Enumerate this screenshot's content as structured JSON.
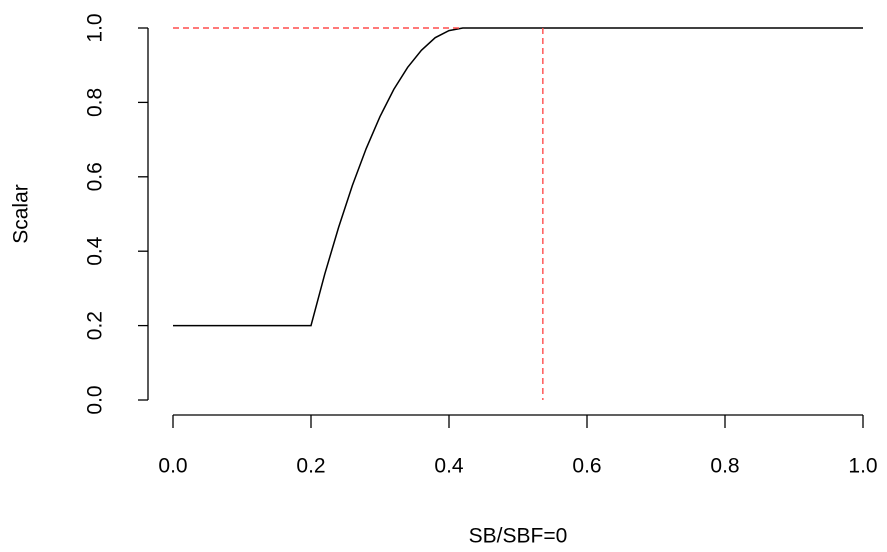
{
  "chart_data": {
    "type": "line",
    "x_label": "SB/SBF=0",
    "y_label": "Scalar",
    "series": [
      {
        "color": "#000000",
        "dashed": false,
        "x": [
          0,
          0.2,
          0.22,
          0.24,
          0.26,
          0.28,
          0.3,
          0.32,
          0.34,
          0.36,
          0.38,
          0.4,
          0.42,
          1.0
        ],
        "values": [
          0.2,
          0.2,
          0.339,
          0.464,
          0.577,
          0.676,
          0.762,
          0.835,
          0.894,
          0.94,
          0.974,
          0.993,
          1.0,
          1.0
        ]
      },
      {
        "color": "#ff4d4d",
        "dashed": true,
        "x": [
          0,
          0.42
        ],
        "values": [
          1.0,
          1.0
        ]
      },
      {
        "color": "#ff4d4d",
        "dashed": true,
        "x": [
          0.536,
          0.536
        ],
        "values": [
          1.0,
          0.0
        ]
      }
    ],
    "xlim": [
      0,
      1
    ],
    "ylim": [
      0,
      1
    ],
    "xticks": [
      {
        "value": 0,
        "label": "0.0"
      },
      0.2,
      0.4,
      0.6,
      0.8,
      {
        "value": 1,
        "label": "1.0"
      }
    ],
    "yticks": [
      {
        "value": 0,
        "label": "0.0"
      },
      0.2,
      0.4,
      0.6,
      0.8,
      {
        "value": 1,
        "label": "1.0"
      }
    ],
    "grid": false
  }
}
